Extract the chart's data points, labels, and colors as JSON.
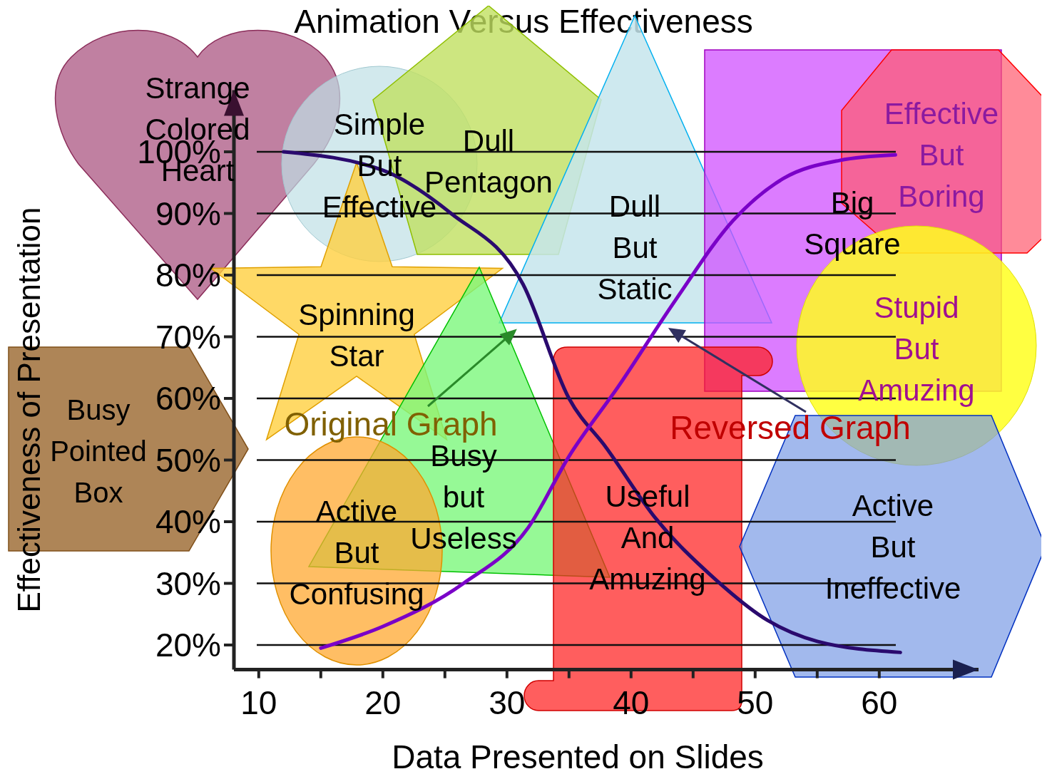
{
  "chart_data": {
    "type": "line",
    "title": "Animation Versus Effectiveness",
    "xlabel": "Data Presented on Slides",
    "ylabel": "Effectiveness of Presentation",
    "xlim": [
      8,
      68
    ],
    "ylim": [
      16,
      110
    ],
    "xticks": [
      10,
      {
        "value": 15,
        "label": null
      },
      20,
      {
        "value": 25,
        "label": null
      },
      30,
      {
        "value": 35,
        "label": null
      },
      40,
      {
        "value": 45,
        "label": null
      },
      50,
      {
        "value": 55,
        "label": null
      },
      60
    ],
    "yticks": [
      {
        "value": 20,
        "label": "20%"
      },
      {
        "value": 30,
        "label": "30%"
      },
      {
        "value": 40,
        "label": "40%"
      },
      {
        "value": 50,
        "label": "50%"
      },
      {
        "value": 60,
        "label": "60%"
      },
      {
        "value": 70,
        "label": "70%"
      },
      {
        "value": 80,
        "label": "80%"
      },
      {
        "value": 90,
        "label": "90%"
      },
      {
        "value": 100,
        "label": "100%"
      }
    ],
    "grid": "y",
    "legend": false,
    "marker": "none",
    "line_style": "solid",
    "series": [
      {
        "name": "Original Graph",
        "color": "#2a0a6e",
        "x": [
          12,
          20,
          25.5,
          31.3,
          35,
          38,
          42,
          46.6,
          51,
          55,
          61.7
        ],
        "values": [
          100,
          97,
          90,
          78.5,
          60,
          52,
          40.5,
          31,
          24,
          20.6,
          18.8
        ]
      },
      {
        "name": "Reversed Graph",
        "color": "#7a00c8",
        "x": [
          15,
          20,
          26.5,
          31.7,
          35,
          39,
          43.6,
          48.2,
          52.3,
          56.8,
          61.3
        ],
        "values": [
          19.5,
          23,
          30,
          39,
          50.6,
          62,
          76,
          88.8,
          95.7,
          98.6,
          99.5
        ]
      }
    ],
    "annotations": [
      "Strange Colored Heart",
      "Simple But Effective",
      "Dull Pentagon",
      "Dull But Static",
      "Big Square",
      "Effective But Boring",
      "Stupid But Amuzing",
      "Spinning Star",
      "Busy Pointed Box",
      "Busy but Useless",
      "Active But Confusing",
      "Useful And Amuzing",
      "Active But Ineffective"
    ]
  }
}
